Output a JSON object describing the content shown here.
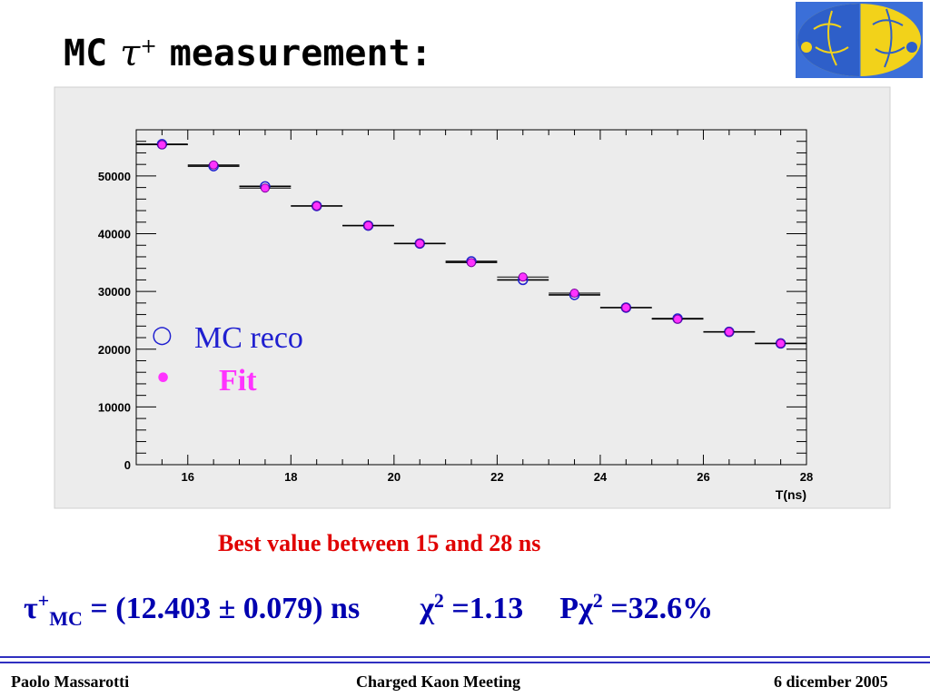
{
  "slide": {
    "title": "MC",
    "title_symbol": "τ",
    "title_sup": "+",
    "title_rest": "measurement:"
  },
  "note": "Best value between 15 and 28 ns",
  "result": {
    "tau": "τ",
    "sup": "+",
    "sub": "MC",
    "value": " = (12.403 ± 0.079) ns",
    "chi_symbol": "χ",
    "chi_exp": "2",
    "chi_value": " =1.13",
    "p_label": "Pχ",
    "p_exp": "2",
    "p_value": " =32.6%"
  },
  "footer": {
    "author": "Paolo Massarotti",
    "meeting": "Charged Kaon Meeting",
    "date": "6 dicember 2005"
  },
  "colors": {
    "mc_reco": "#1f1fd0",
    "fit": "#ff33ff",
    "panel": "#ececec",
    "note": "#e00000",
    "result": "#0000b0",
    "rule": "#3030c0"
  },
  "chart_data": {
    "type": "scatter",
    "xlabel": "T(ns)",
    "ylabel": "",
    "xlim": [
      15,
      28
    ],
    "ylim": [
      0,
      58000
    ],
    "x_ticks": [
      16,
      18,
      20,
      22,
      24,
      26,
      28
    ],
    "y_ticks": [
      0,
      10000,
      20000,
      30000,
      40000,
      50000
    ],
    "y_tick_labels": [
      "0",
      "10000",
      "20000",
      "30000",
      "40000",
      "50000"
    ],
    "x_tick_labels": [
      "16",
      "18",
      "20",
      "22",
      "24",
      "26",
      "28"
    ],
    "legend": [
      {
        "symbol": "○",
        "label": "MC reco"
      },
      {
        "symbol": "•",
        "label": "Fit"
      }
    ],
    "series": [
      {
        "name": "MC reco",
        "x": [
          15.5,
          16.5,
          17.5,
          18.5,
          19.5,
          20.5,
          21.5,
          22.5,
          23.5,
          24.5,
          25.5,
          26.5,
          27.5
        ],
        "values": [
          55500,
          51700,
          48200,
          44800,
          41400,
          38300,
          35200,
          32000,
          29400,
          27200,
          25300,
          23000,
          21000
        ]
      },
      {
        "name": "Fit",
        "x": [
          15.5,
          16.5,
          17.5,
          18.5,
          19.5,
          20.5,
          21.5,
          22.5,
          23.5,
          24.5,
          25.5,
          26.5,
          27.5
        ],
        "values": [
          55400,
          51900,
          47900,
          44800,
          41400,
          38300,
          35000,
          32500,
          29700,
          27200,
          25200,
          23000,
          21000
        ]
      }
    ]
  }
}
